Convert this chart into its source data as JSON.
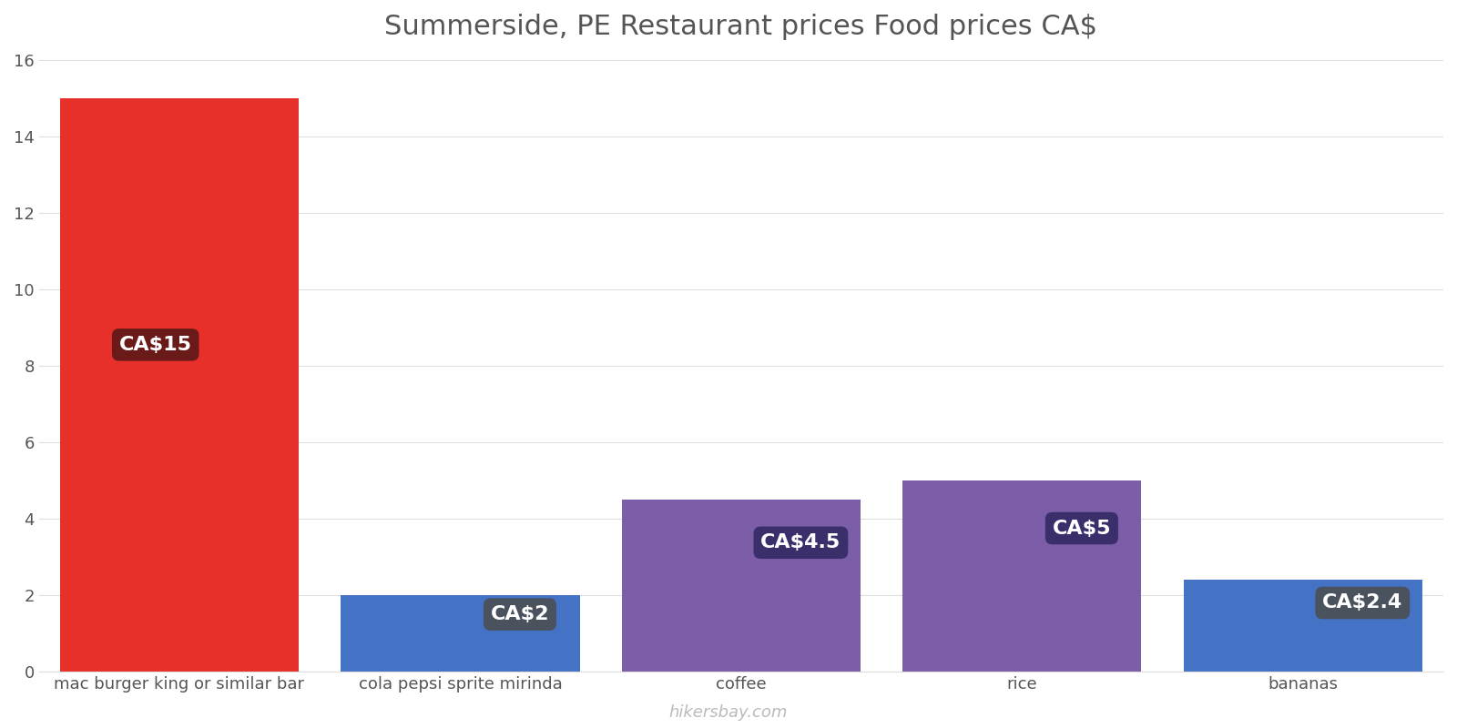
{
  "title": "Summerside, PE Restaurant prices Food prices CA$",
  "categories": [
    "mac burger king or similar bar",
    "cola pepsi sprite mirinda",
    "coffee",
    "rice",
    "bananas"
  ],
  "values": [
    15,
    2,
    4.5,
    5,
    2.4
  ],
  "bar_colors": [
    "#e8302a",
    "#4472c4",
    "#7b5ea7",
    "#7b5ea7",
    "#4472c4"
  ],
  "label_texts": [
    "CA$15",
    "CA$2",
    "CA$4.5",
    "CA$5",
    "CA$2.4"
  ],
  "label_bg_colors": [
    "#6b1a1a",
    "#4a525e",
    "#3b2f6b",
    "#3b2f6b",
    "#4a525e"
  ],
  "label_text_color": "#ffffff",
  "ylim": [
    0,
    16
  ],
  "yticks": [
    0,
    2,
    4,
    6,
    8,
    10,
    12,
    14,
    16
  ],
  "background_color": "#ffffff",
  "grid_color": "#dddddd",
  "title_fontsize": 22,
  "tick_fontsize": 13,
  "label_fontsize": 16,
  "bar_width": 0.85,
  "watermark": "hikersbay.com"
}
